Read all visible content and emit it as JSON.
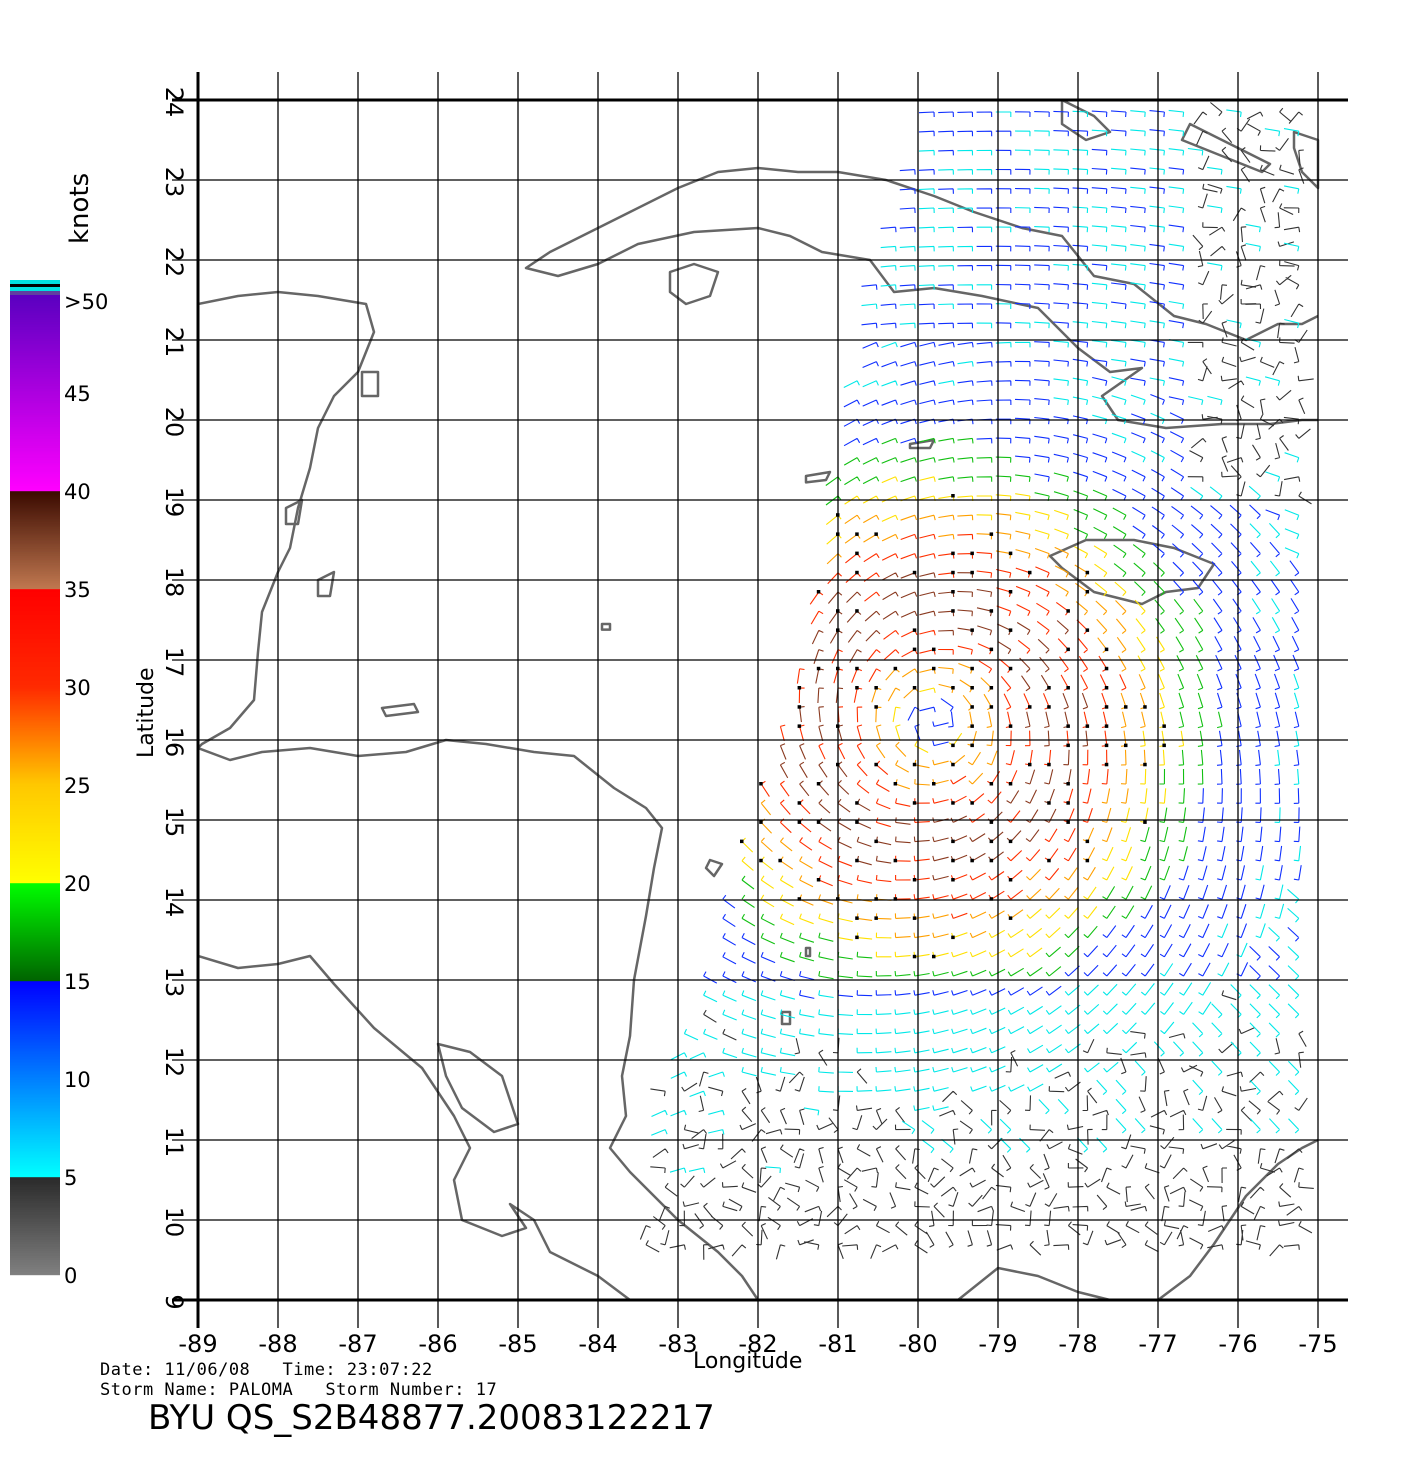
{
  "axes": {
    "xlabel": "Longitude",
    "ylabel": "Latitude",
    "xticks": [
      "-89",
      "-88",
      "-87",
      "-86",
      "-85",
      "-84",
      "-83",
      "-82",
      "-81",
      "-80",
      "-79",
      "-78",
      "-77",
      "-76",
      "-75"
    ],
    "yticks": [
      "9",
      "10",
      "11",
      "12",
      "13",
      "14",
      "15",
      "16",
      "17",
      "18",
      "19",
      "20",
      "21",
      "22",
      "23",
      "24"
    ],
    "xlim": [
      -89,
      -75
    ],
    "ylim": [
      9,
      24
    ]
  },
  "colorbar": {
    "unit": "knots",
    "labels": [
      ">50",
      "45",
      "40",
      "35",
      "30",
      "25",
      "20",
      "15",
      "10",
      "5",
      "0"
    ],
    "stops": [
      {
        "speed": 0,
        "color": "#808080"
      },
      {
        "speed": 5,
        "color": "#2a2a2a"
      },
      {
        "speed": 5,
        "color": "#00ffff"
      },
      {
        "speed": 15,
        "color": "#0000ff"
      },
      {
        "speed": 15,
        "color": "#006400"
      },
      {
        "speed": 20,
        "color": "#00ff00"
      },
      {
        "speed": 20,
        "color": "#ffff00"
      },
      {
        "speed": 25,
        "color": "#ffc800"
      },
      {
        "speed": 30,
        "color": "#ff2a00"
      },
      {
        "speed": 35,
        "color": "#ff0000"
      },
      {
        "speed": 35,
        "color": "#c07850"
      },
      {
        "speed": 40,
        "color": "#3a0a00"
      },
      {
        "speed": 40,
        "color": "#ff00ff"
      },
      {
        "speed": 50,
        "color": "#5a00c0"
      }
    ]
  },
  "info": {
    "date_line": "Date: 11/06/08   Time: 23:07:22",
    "storm_line": "Storm Name: PALOMA   Storm Number: 17",
    "product": "BYU QS_S2B48877.20083122217"
  },
  "colors": {
    "coast": "#666666",
    "grid": "#000000",
    "rain_flag": "#000000"
  },
  "chart_data": {
    "type": "wind-barb-map",
    "storm": {
      "name": "PALOMA",
      "number": 17,
      "center_lon": -79.8,
      "center_lat": 16.2
    },
    "xlim": [
      -89,
      -75
    ],
    "ylim": [
      9,
      24
    ],
    "speed_unit": "knots",
    "grid": true
  }
}
